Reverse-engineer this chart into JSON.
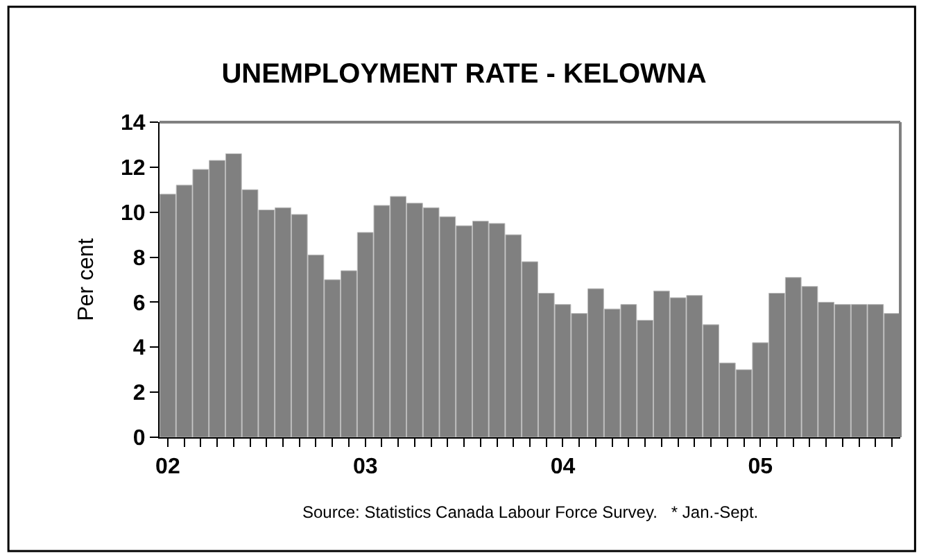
{
  "chart_data": {
    "type": "bar",
    "title": "UNEMPLOYMENT RATE - KELOWNA",
    "ylabel": "Per cent",
    "categories": [
      "02",
      null,
      null,
      null,
      null,
      null,
      null,
      null,
      null,
      null,
      null,
      null,
      "03",
      null,
      null,
      null,
      null,
      null,
      null,
      null,
      null,
      null,
      null,
      null,
      "04",
      null,
      null,
      null,
      null,
      null,
      null,
      null,
      null,
      null,
      null,
      null,
      "05",
      null,
      null,
      null,
      null,
      null,
      null,
      null,
      null
    ],
    "values": [
      10.8,
      11.2,
      11.9,
      12.3,
      12.6,
      11.0,
      10.1,
      10.2,
      9.9,
      8.1,
      7.0,
      7.4,
      9.1,
      10.3,
      10.7,
      10.4,
      10.2,
      9.8,
      9.4,
      9.6,
      9.5,
      9.0,
      7.8,
      6.4,
      5.9,
      5.5,
      6.6,
      5.7,
      5.9,
      5.2,
      6.5,
      6.2,
      6.3,
      5.0,
      3.3,
      3.0,
      4.2,
      6.4,
      7.1,
      6.7,
      6.0,
      5.9,
      5.9,
      5.9,
      5.5
    ],
    "color": "#808080",
    "ylim": [
      0,
      14
    ],
    "yticks": [
      0,
      2,
      4,
      6,
      8,
      10,
      12,
      14
    ],
    "legend": false,
    "annotations": [
      "Source: Statistics Canada Labour Force Survey.   * Jan.-Sept."
    ]
  }
}
